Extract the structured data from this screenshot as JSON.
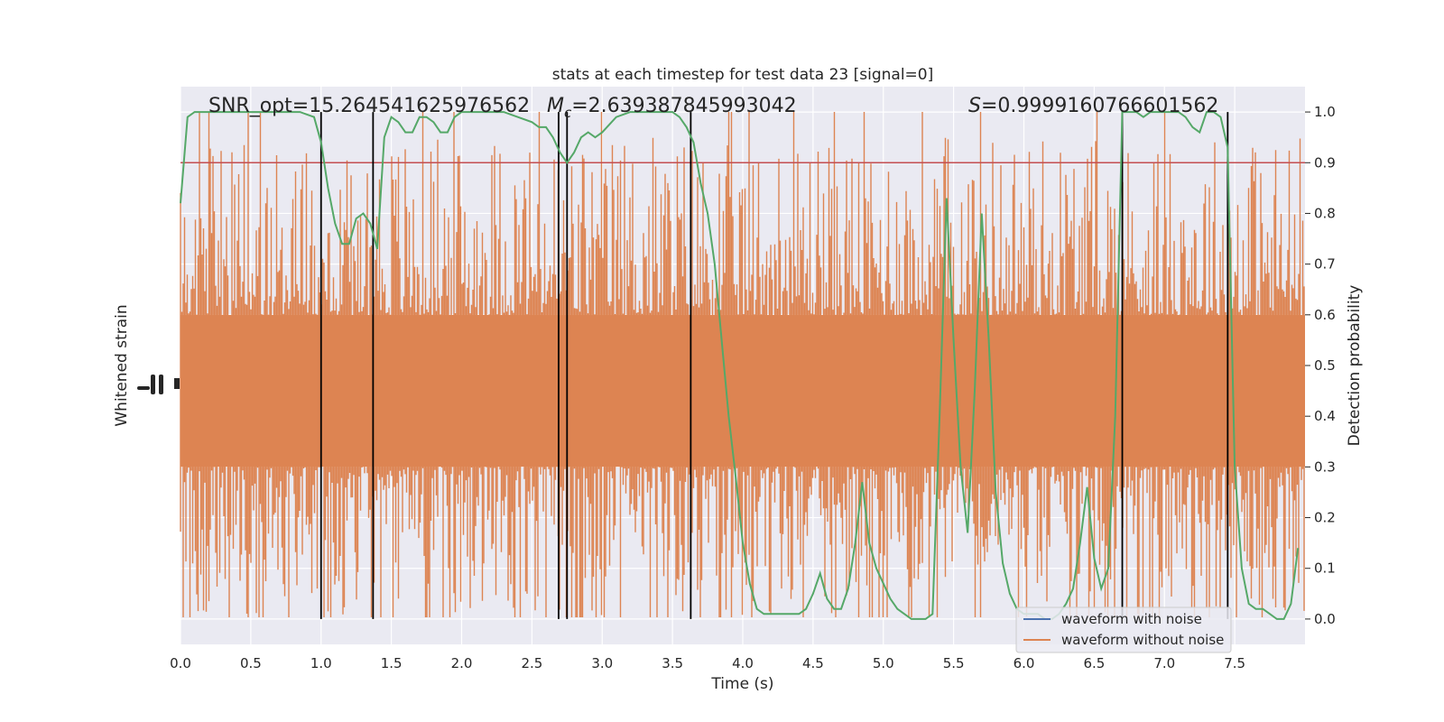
{
  "chart_data": {
    "type": "line",
    "title": "stats at each timestep for test data 23 [signal=0]",
    "xlabel": "Time (s)",
    "ylabel_left": "Whitened strain",
    "ylabel_right": "Detection probability",
    "xlim": [
      0.0,
      8.0
    ],
    "ylim_right": [
      -0.05,
      1.05
    ],
    "x_ticks": [
      0.0,
      0.5,
      1.0,
      1.5,
      2.0,
      2.5,
      3.0,
      3.5,
      4.0,
      4.5,
      5.0,
      5.5,
      6.0,
      6.5,
      7.0,
      7.5
    ],
    "x_tick_labels": [
      "0.0",
      "0.5",
      "1.0",
      "1.5",
      "2.0",
      "2.5",
      "3.0",
      "3.5",
      "4.0",
      "4.5",
      "5.0",
      "5.5",
      "6.0",
      "6.5",
      "7.0",
      "7.5"
    ],
    "y_ticks_right": [
      0.0,
      0.1,
      0.2,
      0.3,
      0.4,
      0.5,
      0.6,
      0.7,
      0.8,
      0.9,
      1.0
    ],
    "y_tick_labels_right": [
      "0.0",
      "0.1",
      "0.2",
      "0.3",
      "0.4",
      "0.5",
      "0.6",
      "0.7",
      "0.8",
      "0.9",
      "1.0"
    ],
    "grid": true,
    "legend_position": "bottom-right",
    "annotations": {
      "snr": "SNR_opt=15.264541625976562",
      "mc_symbol": "M",
      "mc_subscript": "c",
      "mc_value": "=2.639387845993042",
      "s_symbol": "S",
      "s_value": "=0.9999160766601562"
    },
    "threshold": {
      "value": 0.9,
      "color": "#c44e52"
    },
    "vertical_markers": [
      1.0,
      1.37,
      2.69,
      2.75,
      3.63,
      6.7,
      7.45
    ],
    "series": [
      {
        "name": "waveform with noise",
        "color": "#4c72b0"
      },
      {
        "name": "waveform without noise",
        "color": "#dd8452"
      },
      {
        "color": "#55a868",
        "x": [
          0.0,
          0.05,
          0.1,
          0.2,
          0.3,
          0.5,
          0.7,
          0.85,
          0.95,
          1.0,
          1.05,
          1.1,
          1.15,
          1.2,
          1.25,
          1.3,
          1.35,
          1.4,
          1.45,
          1.5,
          1.55,
          1.6,
          1.65,
          1.7,
          1.75,
          1.8,
          1.85,
          1.9,
          1.95,
          2.0,
          2.05,
          2.1,
          2.2,
          2.3,
          2.4,
          2.5,
          2.55,
          2.6,
          2.65,
          2.7,
          2.75,
          2.8,
          2.85,
          2.9,
          2.95,
          3.0,
          3.1,
          3.2,
          3.3,
          3.4,
          3.5,
          3.55,
          3.6,
          3.65,
          3.7,
          3.75,
          3.8,
          3.85,
          3.9,
          3.95,
          4.0,
          4.05,
          4.1,
          4.15,
          4.2,
          4.25,
          4.3,
          4.35,
          4.4,
          4.45,
          4.5,
          4.55,
          4.6,
          4.65,
          4.7,
          4.75,
          4.8,
          4.85,
          4.9,
          4.95,
          5.0,
          5.05,
          5.1,
          5.15,
          5.2,
          5.25,
          5.3,
          5.35,
          5.4,
          5.45,
          5.5,
          5.55,
          5.6,
          5.65,
          5.7,
          5.75,
          5.8,
          5.85,
          5.9,
          5.95,
          6.0,
          6.05,
          6.1,
          6.15,
          6.2,
          6.25,
          6.3,
          6.35,
          6.4,
          6.45,
          6.5,
          6.55,
          6.6,
          6.65,
          6.7,
          6.75,
          6.8,
          6.85,
          6.9,
          6.95,
          7.0,
          7.05,
          7.1,
          7.15,
          7.2,
          7.25,
          7.3,
          7.35,
          7.4,
          7.45,
          7.5,
          7.55,
          7.6,
          7.65,
          7.7,
          7.75,
          7.8,
          7.85,
          7.9,
          7.95
        ],
        "y": [
          0.82,
          0.99,
          1.0,
          1.0,
          1.0,
          1.0,
          1.0,
          1.0,
          0.99,
          0.94,
          0.85,
          0.78,
          0.74,
          0.74,
          0.79,
          0.8,
          0.78,
          0.73,
          0.95,
          0.99,
          0.98,
          0.96,
          0.96,
          0.99,
          0.99,
          0.98,
          0.96,
          0.96,
          0.99,
          1.0,
          1.0,
          1.0,
          1.0,
          1.0,
          0.99,
          0.98,
          0.97,
          0.97,
          0.95,
          0.92,
          0.9,
          0.92,
          0.95,
          0.96,
          0.95,
          0.96,
          0.99,
          1.0,
          1.0,
          1.0,
          1.0,
          0.99,
          0.97,
          0.94,
          0.86,
          0.8,
          0.7,
          0.55,
          0.4,
          0.28,
          0.15,
          0.07,
          0.02,
          0.01,
          0.01,
          0.01,
          0.01,
          0.01,
          0.01,
          0.02,
          0.05,
          0.09,
          0.04,
          0.02,
          0.02,
          0.06,
          0.15,
          0.27,
          0.15,
          0.1,
          0.07,
          0.04,
          0.02,
          0.01,
          0.0,
          0.0,
          0.0,
          0.01,
          0.4,
          0.83,
          0.55,
          0.3,
          0.17,
          0.45,
          0.8,
          0.55,
          0.25,
          0.11,
          0.05,
          0.02,
          0.01,
          0.01,
          0.01,
          0.0,
          0.0,
          0.01,
          0.03,
          0.06,
          0.15,
          0.26,
          0.12,
          0.06,
          0.1,
          0.4,
          1.0,
          1.0,
          1.0,
          0.99,
          1.0,
          1.0,
          1.0,
          1.0,
          1.0,
          0.99,
          0.97,
          0.96,
          1.0,
          1.0,
          0.99,
          0.93,
          0.3,
          0.1,
          0.03,
          0.02,
          0.02,
          0.01,
          0.0,
          0.0,
          0.03,
          0.14
        ]
      }
    ]
  }
}
